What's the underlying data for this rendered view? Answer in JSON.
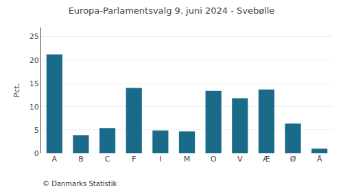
{
  "chart_data": {
    "type": "bar",
    "title": "Europa-Parlamentsvalg 9. juni 2024 - Svebølle",
    "categories": [
      "A",
      "B",
      "C",
      "F",
      "I",
      "M",
      "O",
      "V",
      "Æ",
      "Ø",
      "Å"
    ],
    "values": [
      21.2,
      3.9,
      5.4,
      14.0,
      4.9,
      4.7,
      13.4,
      11.8,
      13.7,
      6.4,
      1.0
    ],
    "color": "#1a6b8a",
    "ylabel": "Pct.",
    "ylim": [
      0,
      27
    ],
    "yticks": [
      0,
      5,
      10,
      15,
      20,
      25
    ],
    "grid": true,
    "annotations": [
      "© Danmarks Statistik"
    ]
  }
}
